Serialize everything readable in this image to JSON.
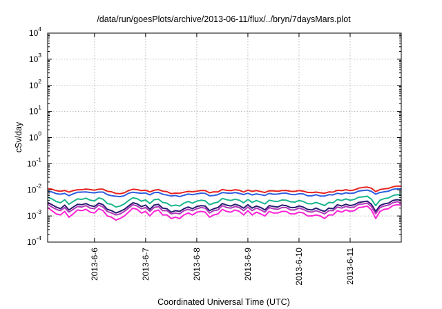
{
  "chart_data": {
    "type": "line",
    "title": "/data/run/goesPlots/archive/2013-06-11/flux/../bryn/7daysMars.plot",
    "xlabel": "Coordinated Universal Time (UTC)",
    "ylabel": "cSv/day",
    "yscale": "log",
    "ylim": [
      0.0001,
      10000
    ],
    "y_ticks": [
      {
        "base": "10",
        "exp": "-4"
      },
      {
        "base": "10",
        "exp": "-3"
      },
      {
        "base": "10",
        "exp": "-2"
      },
      {
        "base": "10",
        "exp": "-1"
      },
      {
        "base": "10",
        "exp": "0"
      },
      {
        "base": "10",
        "exp": "1"
      },
      {
        "base": "10",
        "exp": "2"
      },
      {
        "base": "10",
        "exp": "3"
      },
      {
        "base": "10",
        "exp": "4"
      }
    ],
    "xlim": [
      "2013-06-05 02:00",
      "2013-06-12 00:00"
    ],
    "x_ticks": [
      "2013-6-6",
      "2013-6-7",
      "2013-6-8",
      "2013-6-9",
      "2013-6-10",
      "2013-6-11"
    ],
    "grid": true,
    "x_hours": [
      0,
      2,
      4,
      6,
      8,
      10,
      12,
      14,
      16,
      18,
      20,
      22,
      24,
      26,
      28,
      30,
      32,
      34,
      36,
      38,
      40,
      42,
      44,
      46,
      48,
      50,
      52,
      54,
      56,
      58,
      60,
      62,
      64,
      66,
      68,
      70,
      72,
      74,
      76,
      78,
      80,
      82,
      84,
      86,
      88,
      90,
      92,
      94,
      96,
      98,
      100,
      102,
      104,
      106,
      108,
      110,
      112,
      114,
      116,
      118,
      120,
      122,
      124,
      126,
      128,
      130,
      132,
      134,
      136,
      138,
      140,
      142,
      144,
      146,
      148,
      150,
      152,
      154,
      156,
      158,
      160,
      162,
      164,
      166
    ],
    "series": [
      {
        "color": "#e8231f",
        "values": [
          0.0112,
          0.0106,
          0.0093,
          0.0088,
          0.0095,
          0.0082,
          0.0093,
          0.0101,
          0.0101,
          0.0107,
          0.0102,
          0.0097,
          0.0106,
          0.0106,
          0.0088,
          0.0084,
          0.0073,
          0.0071,
          0.0077,
          0.0094,
          0.0105,
          0.0102,
          0.0093,
          0.0097,
          0.0083,
          0.0097,
          0.0102,
          0.0089,
          0.0085,
          0.0072,
          0.0075,
          0.0074,
          0.0081,
          0.0087,
          0.0084,
          0.0089,
          0.0095,
          0.0093,
          0.0077,
          0.0084,
          0.0083,
          0.0103,
          0.0096,
          0.0093,
          0.0101,
          0.0096,
          0.0082,
          0.0098,
          0.0087,
          0.0094,
          0.0086,
          0.0079,
          0.0092,
          0.0091,
          0.0088,
          0.0094,
          0.0095,
          0.0088,
          0.0087,
          0.0094,
          0.0089,
          0.008,
          0.0078,
          0.0082,
          0.0077,
          0.0074,
          0.0083,
          0.0082,
          0.0096,
          0.0093,
          0.0101,
          0.0094,
          0.0099,
          0.0116,
          0.0123,
          0.0127,
          0.0116,
          0.0085,
          0.0103,
          0.011,
          0.0114,
          0.013,
          0.014,
          0.0138
        ]
      },
      {
        "color": "#2d5de0",
        "values": [
          0.0086,
          0.0083,
          0.0072,
          0.0068,
          0.0073,
          0.006,
          0.007,
          0.0081,
          0.0082,
          0.0083,
          0.0079,
          0.0077,
          0.0082,
          0.0082,
          0.0066,
          0.006,
          0.0057,
          0.0055,
          0.006,
          0.0074,
          0.0081,
          0.0077,
          0.0074,
          0.0076,
          0.0064,
          0.0078,
          0.008,
          0.0068,
          0.0063,
          0.0058,
          0.0061,
          0.0055,
          0.0062,
          0.0069,
          0.0065,
          0.007,
          0.0075,
          0.0073,
          0.0059,
          0.0061,
          0.0066,
          0.0079,
          0.0076,
          0.0074,
          0.0079,
          0.0073,
          0.0066,
          0.0074,
          0.0064,
          0.007,
          0.0065,
          0.0061,
          0.0073,
          0.0068,
          0.0069,
          0.0074,
          0.0075,
          0.0067,
          0.0065,
          0.0071,
          0.007,
          0.0059,
          0.0059,
          0.0065,
          0.0058,
          0.0058,
          0.0065,
          0.0064,
          0.0074,
          0.0069,
          0.0077,
          0.0073,
          0.0076,
          0.009,
          0.0094,
          0.0098,
          0.0087,
          0.0068,
          0.0079,
          0.0084,
          0.0089,
          0.0104,
          0.0111,
          0.0109
        ]
      },
      {
        "color": "#19b58f",
        "values": [
          0.0052,
          0.0045,
          0.0036,
          0.0032,
          0.0042,
          0.0028,
          0.0036,
          0.0045,
          0.0043,
          0.0048,
          0.004,
          0.0038,
          0.0049,
          0.0044,
          0.003,
          0.0028,
          0.0022,
          0.0024,
          0.0029,
          0.0039,
          0.005,
          0.0046,
          0.0037,
          0.0041,
          0.003,
          0.0042,
          0.0044,
          0.0033,
          0.0031,
          0.0024,
          0.0026,
          0.0024,
          0.0031,
          0.0036,
          0.0031,
          0.0037,
          0.004,
          0.0038,
          0.0027,
          0.0031,
          0.0034,
          0.0047,
          0.0042,
          0.0039,
          0.0044,
          0.004,
          0.0032,
          0.0043,
          0.0033,
          0.0039,
          0.0034,
          0.0029,
          0.004,
          0.0037,
          0.0036,
          0.0041,
          0.004,
          0.0035,
          0.0034,
          0.0039,
          0.0036,
          0.003,
          0.0029,
          0.0033,
          0.0029,
          0.0025,
          0.0033,
          0.0032,
          0.0043,
          0.0039,
          0.0045,
          0.004,
          0.0043,
          0.0052,
          0.0054,
          0.0057,
          0.0044,
          0.0025,
          0.004,
          0.0046,
          0.0049,
          0.006,
          0.0065,
          0.0062
        ]
      },
      {
        "color": "#2a1b73",
        "values": [
          0.0033,
          0.0027,
          0.0022,
          0.0019,
          0.0026,
          0.0017,
          0.0022,
          0.0028,
          0.0027,
          0.003,
          0.0025,
          0.0023,
          0.0031,
          0.0027,
          0.0018,
          0.0016,
          0.0013,
          0.0015,
          0.0018,
          0.0024,
          0.0032,
          0.0029,
          0.0023,
          0.0026,
          0.0018,
          0.0026,
          0.0028,
          0.002,
          0.0019,
          0.0014,
          0.0016,
          0.0015,
          0.0019,
          0.0022,
          0.0019,
          0.0023,
          0.0025,
          0.0024,
          0.0016,
          0.0019,
          0.0021,
          0.003,
          0.0026,
          0.0024,
          0.0028,
          0.0025,
          0.002,
          0.0027,
          0.002,
          0.0024,
          0.0021,
          0.0017,
          0.0025,
          0.0023,
          0.0022,
          0.0026,
          0.0025,
          0.0021,
          0.0021,
          0.0024,
          0.0022,
          0.0018,
          0.0017,
          0.002,
          0.0017,
          0.0015,
          0.002,
          0.0019,
          0.0027,
          0.0024,
          0.0028,
          0.0025,
          0.0027,
          0.0033,
          0.0035,
          0.0037,
          0.0028,
          0.0015,
          0.0025,
          0.0029,
          0.0031,
          0.0039,
          0.0042,
          0.004
        ]
      },
      {
        "color": "#b238b8",
        "values": [
          0.0028,
          0.0022,
          0.0018,
          0.0016,
          0.0021,
          0.0014,
          0.0018,
          0.0023,
          0.0022,
          0.0025,
          0.002,
          0.0019,
          0.0026,
          0.0022,
          0.0015,
          0.0013,
          0.0011,
          0.0012,
          0.0015,
          0.002,
          0.0027,
          0.0024,
          0.0019,
          0.0021,
          0.0015,
          0.0021,
          0.0023,
          0.0016,
          0.0016,
          0.0012,
          0.0013,
          0.0012,
          0.0016,
          0.0018,
          0.0016,
          0.0019,
          0.0021,
          0.002,
          0.0013,
          0.0016,
          0.0017,
          0.0025,
          0.0021,
          0.002,
          0.0023,
          0.0021,
          0.0016,
          0.0022,
          0.0016,
          0.002,
          0.0017,
          0.0014,
          0.0021,
          0.0019,
          0.0018,
          0.0021,
          0.0021,
          0.0017,
          0.0017,
          0.002,
          0.0018,
          0.0015,
          0.0014,
          0.0016,
          0.0014,
          0.0012,
          0.0016,
          0.0016,
          0.0022,
          0.002,
          0.0023,
          0.0021,
          0.0022,
          0.0028,
          0.0029,
          0.0031,
          0.0023,
          0.0012,
          0.0021,
          0.0024,
          0.0026,
          0.0032,
          0.0035,
          0.0033
        ]
      },
      {
        "color": "#ff22d6",
        "values": [
          0.0021,
          0.0016,
          0.0012,
          0.0011,
          0.0015,
          0.0009,
          0.0012,
          0.0017,
          0.0016,
          0.0018,
          0.0014,
          0.0013,
          0.0019,
          0.0016,
          0.001,
          0.0009,
          0.0007,
          0.0008,
          0.001,
          0.0014,
          0.002,
          0.0018,
          0.0013,
          0.0015,
          0.001,
          0.0015,
          0.0017,
          0.0011,
          0.0011,
          0.0008,
          0.0009,
          0.0008,
          0.0011,
          0.0013,
          0.0011,
          0.0014,
          0.0015,
          0.0014,
          0.0009,
          0.0011,
          0.0012,
          0.0018,
          0.0015,
          0.0014,
          0.0017,
          0.0015,
          0.0011,
          0.0016,
          0.0011,
          0.0014,
          0.0012,
          0.001,
          0.0015,
          0.0013,
          0.0013,
          0.0015,
          0.0015,
          0.0012,
          0.0012,
          0.0014,
          0.0013,
          0.001,
          0.001,
          0.0011,
          0.001,
          0.0008,
          0.0011,
          0.0011,
          0.0016,
          0.0014,
          0.0017,
          0.0015,
          0.0016,
          0.0021,
          0.0022,
          0.0024,
          0.0017,
          0.0008,
          0.0015,
          0.0018,
          0.0019,
          0.0025,
          0.0027,
          0.0026
        ]
      }
    ]
  }
}
